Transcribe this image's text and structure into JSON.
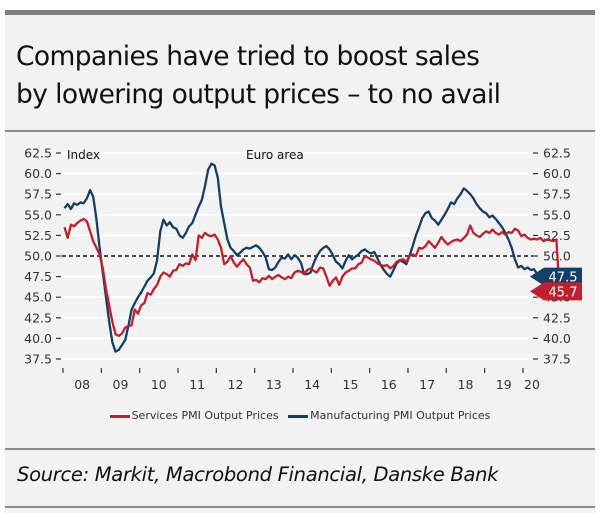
{
  "title_lines": [
    "Companies have tried to boost sales",
    "by lowering output prices – to no avail"
  ],
  "source": "Source: Markit, Macrobond Financial, Danske Bank",
  "colors": {
    "services": "#c0202e",
    "manufacturing": "#123f66",
    "background": "#f2f2f2",
    "rule": "#8c8c8c"
  },
  "chart_data": {
    "type": "line",
    "title": "Companies have tried to boost sales by lowering output prices – to no avail",
    "ylabel": "Index",
    "annotation": "Euro area",
    "ylim": [
      37.5,
      62.5
    ],
    "yticks": [
      "62.5",
      "60.0",
      "57.5",
      "55.0",
      "52.5",
      "50.0",
      "47.5",
      "45.0",
      "42.5",
      "40.0",
      "37.5"
    ],
    "xtick_labels": [
      "08",
      "09",
      "10",
      "11",
      "12",
      "13",
      "14",
      "15",
      "16",
      "17",
      "18",
      "19",
      "20"
    ],
    "x_start": "2008-01",
    "frequency": "monthly",
    "reference_line": 50.0,
    "grid": true,
    "legend_position": "bottom",
    "end_labels": [
      {
        "series": "Manufacturing PMI Output Prices",
        "value": "47.5"
      },
      {
        "series": "Services PMI Output Prices",
        "value": "45.7"
      }
    ],
    "series": [
      {
        "name": "Services PMI Output Prices",
        "color": "#c0202e",
        "values": [
          53.5,
          52.2,
          53.8,
          53.6,
          54.0,
          54.3,
          54.5,
          54.2,
          53.0,
          51.8,
          51.0,
          50.2,
          48.5,
          46.0,
          44.0,
          42.0,
          40.5,
          40.3,
          40.6,
          41.3,
          41.5,
          41.6,
          43.5,
          43.0,
          44.0,
          44.3,
          45.5,
          45.3,
          46.0,
          46.5,
          47.5,
          48.0,
          47.8,
          47.5,
          48.2,
          48.3,
          49.0,
          48.8,
          49.1,
          49.0,
          50.2,
          49.5,
          52.5,
          52.2,
          52.8,
          52.5,
          52.4,
          52.6,
          52.0,
          51.0,
          49.0,
          49.3,
          50.0,
          49.2,
          48.7,
          49.2,
          49.6,
          49.0,
          48.6,
          47.0,
          47.1,
          46.8,
          47.3,
          47.2,
          47.6,
          47.2,
          47.5,
          47.7,
          47.4,
          47.2,
          47.5,
          47.3,
          48.0,
          48.2,
          48.1,
          47.8,
          48.3,
          48.5,
          48.2,
          48.0,
          48.6,
          48.5,
          47.5,
          46.4,
          47.0,
          47.4,
          46.5,
          47.5,
          48.0,
          48.2,
          48.5,
          48.5,
          49.0,
          49.2,
          50.0,
          49.8,
          49.6,
          49.4,
          49.1,
          48.9,
          48.8,
          48.9,
          48.5,
          48.8,
          49.3,
          49.5,
          49.6,
          49.3,
          50.0,
          50.2,
          50.0,
          51.0,
          50.9,
          51.2,
          51.8,
          51.4,
          51.0,
          51.6,
          52.3,
          51.8,
          51.4,
          51.7,
          51.9,
          52.0,
          51.8,
          52.2,
          52.6,
          53.7,
          52.8,
          52.5,
          52.3,
          52.7,
          53.0,
          52.8,
          53.2,
          52.8,
          52.6,
          52.9,
          52.6,
          52.9,
          52.8,
          53.3,
          53.1,
          52.4,
          52.6,
          52.2,
          52.0,
          52.1,
          52.0,
          52.2,
          51.8,
          52.0,
          51.9,
          51.8,
          52.0,
          45.7
        ]
      },
      {
        "name": "Manufacturing PMI Output Prices",
        "color": "#123f66",
        "values": [
          55.8,
          56.3,
          55.7,
          56.4,
          56.2,
          56.5,
          56.4,
          57.0,
          58.0,
          57.2,
          54.5,
          51.0,
          48.0,
          45.0,
          42.0,
          39.5,
          38.4,
          38.6,
          39.2,
          39.8,
          41.5,
          43.5,
          44.3,
          45.0,
          45.6,
          46.3,
          47.0,
          47.4,
          47.9,
          49.5,
          53.0,
          54.4,
          53.7,
          54.1,
          53.5,
          53.3,
          52.5,
          52.2,
          52.8,
          53.6,
          54.0,
          55.0,
          56.0,
          56.8,
          58.5,
          60.5,
          61.2,
          61.0,
          59.5,
          56.0,
          54.0,
          52.0,
          51.0,
          50.6,
          50.1,
          50.4,
          50.8,
          51.0,
          50.9,
          51.1,
          51.3,
          51.0,
          50.5,
          49.8,
          48.4,
          48.3,
          48.6,
          49.3,
          49.8,
          49.7,
          50.2,
          49.6,
          50.1,
          49.8,
          49.2,
          47.8,
          47.8,
          48.0,
          49.1,
          50.0,
          50.6,
          51.0,
          51.2,
          50.8,
          50.1,
          49.3,
          49.0,
          48.5,
          49.4,
          50.1,
          49.6,
          49.9,
          50.2,
          50.6,
          50.8,
          50.5,
          50.3,
          50.5,
          49.7,
          48.9,
          48.3,
          47.8,
          47.5,
          48.3,
          49.1,
          49.5,
          49.3,
          49.0,
          50.0,
          51.2,
          52.5,
          53.5,
          54.6,
          55.2,
          55.4,
          54.6,
          54.3,
          53.8,
          54.4,
          55.0,
          55.7,
          56.5,
          56.3,
          57.0,
          57.5,
          58.2,
          57.9,
          57.5,
          57.0,
          56.3,
          55.8,
          55.4,
          55.2,
          54.7,
          54.9,
          54.5,
          54.0,
          53.5,
          52.8,
          52.0,
          51.0,
          49.6,
          48.6,
          48.8,
          48.4,
          48.6,
          48.3,
          48.4,
          47.8,
          48.0,
          47.6,
          47.5
        ]
      }
    ]
  }
}
